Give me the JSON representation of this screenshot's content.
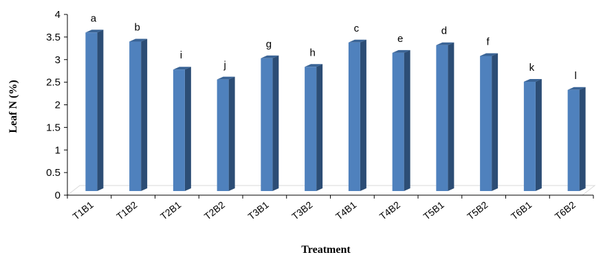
{
  "chart_data": {
    "type": "bar",
    "title": "",
    "xlabel": "Treatment",
    "ylabel": "Leaf N (%)",
    "categories": [
      "T1B1",
      "T1B2",
      "T2B1",
      "T2B2",
      "T3B1",
      "T3B2",
      "T4B1",
      "T4B2",
      "T5B1",
      "T5B2",
      "T6B1",
      "T6B2"
    ],
    "values": [
      3.6,
      3.4,
      2.78,
      2.56,
      3.03,
      2.84,
      3.38,
      3.15,
      3.32,
      3.08,
      2.51,
      2.33
    ],
    "significance_letters": [
      "a",
      "b",
      "i",
      "j",
      "g",
      "h",
      "c",
      "e",
      "d",
      "f",
      "k",
      "l"
    ],
    "yticks": [
      "0",
      "0.5",
      "1",
      "1.5",
      "2",
      "2.5",
      "3",
      "3.5",
      "4"
    ],
    "ylim": [
      0,
      4
    ],
    "grid": false,
    "legend": "none",
    "style": "3d-column",
    "colors": {
      "bar_front": "#4f81bd",
      "bar_side": "#2c4d75",
      "bar_top": "#3a6496",
      "axis": "#000000",
      "floor": "#d9d9d9"
    }
  }
}
